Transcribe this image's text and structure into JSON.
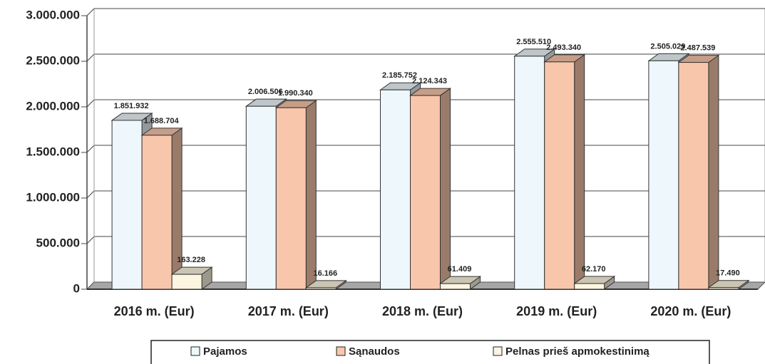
{
  "chart_data": {
    "type": "bar3d",
    "categories": [
      "2016 m. (Eur)",
      "2017 m. (Eur)",
      "2018 m. (Eur)",
      "2019 m. (Eur)",
      "2020 m. (Eur)"
    ],
    "series": [
      {
        "name": "Pajamos",
        "color": "#eef8fc",
        "values": [
          1851932,
          2006506,
          2185752,
          2555510,
          2505029
        ],
        "value_labels": [
          "1.851.932",
          "2.006.506",
          "2.185.752",
          "2.555.510",
          "2.505.029"
        ]
      },
      {
        "name": "Sąnaudos",
        "color": "#f8c6aa",
        "values": [
          1688704,
          1990340,
          2124343,
          2493340,
          2487539
        ],
        "value_labels": [
          "1.688.704",
          "1.990.340",
          "2.124.343",
          "2.493.340",
          "2.487.539"
        ]
      },
      {
        "name": "Pelnas prieš apmokestinimą",
        "color": "#fcf5e0",
        "values": [
          163228,
          16166,
          61409,
          62170,
          17490
        ],
        "value_labels": [
          "163.228",
          "16.166",
          "61.409",
          "62.170",
          "17.490"
        ]
      }
    ],
    "ylim": [
      0,
      3000000
    ],
    "yticks": [
      0,
      {
        "value": 500000,
        "label": "500.000"
      },
      {
        "value": 1000000,
        "label": "1.000.000"
      },
      {
        "value": 1500000,
        "label": "1.500.000"
      },
      {
        "value": 2000000,
        "label": "2.000.000"
      },
      {
        "value": 2500000,
        "label": "2.500.000"
      },
      {
        "value": 3000000,
        "label": "3.000.000"
      }
    ],
    "grid": true
  }
}
